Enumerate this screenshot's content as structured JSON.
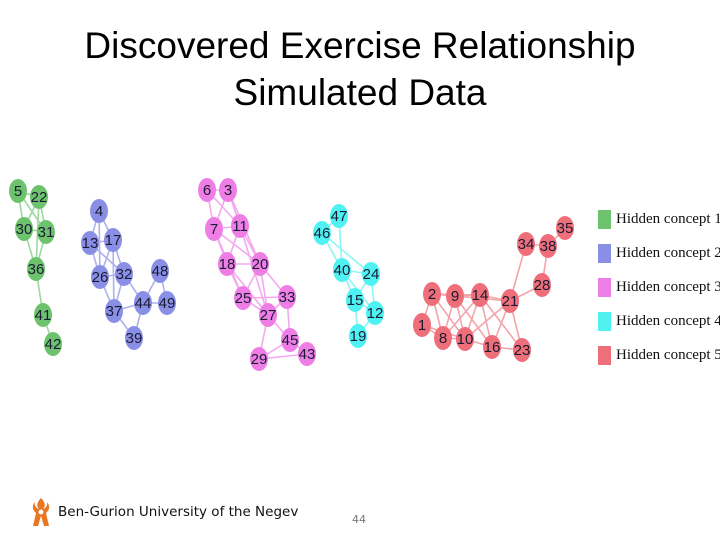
{
  "title_line1": "Discovered Exercise Relationship",
  "title_line2": "Simulated Data",
  "legend": [
    {
      "label": "Hidden concept 1",
      "color": "#6dc36d"
    },
    {
      "label": "Hidden concept 2",
      "color": "#8a8fe6"
    },
    {
      "label": "Hidden concept 3",
      "color": "#ee7ee6"
    },
    {
      "label": "Hidden concept 4",
      "color": "#4ff1f1"
    },
    {
      "label": "Hidden concept 5",
      "color": "#ee6f7a"
    }
  ],
  "footer_text": "Ben-Gurion University of the Negev",
  "page_number": "44",
  "clusters": [
    {
      "concept": 1,
      "nodes": [
        "5",
        "22",
        "30",
        "31",
        "36",
        "41",
        "42"
      ]
    },
    {
      "concept": 2,
      "nodes": [
        "4",
        "13",
        "17",
        "26",
        "32",
        "48",
        "37",
        "44",
        "49",
        "39"
      ]
    },
    {
      "concept": 3,
      "nodes": [
        "6",
        "3",
        "7",
        "11",
        "18",
        "20",
        "25",
        "33",
        "27",
        "45",
        "29",
        "43"
      ]
    },
    {
      "concept": 4,
      "nodes": [
        "47",
        "46",
        "40",
        "24",
        "15",
        "12",
        "19"
      ]
    },
    {
      "concept": 5,
      "nodes": [
        "35",
        "34",
        "38",
        "28",
        "2",
        "9",
        "14",
        "21",
        "1",
        "8",
        "10",
        "16",
        "23"
      ]
    }
  ]
}
